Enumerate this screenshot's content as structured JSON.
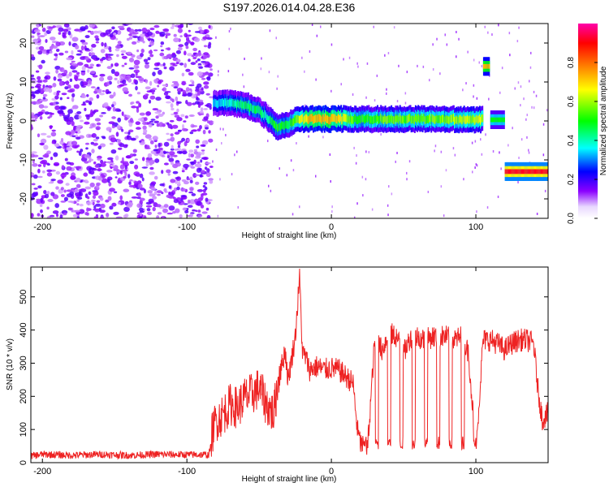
{
  "title": "S197.2026.014.04.28.E36",
  "chart_data": [
    {
      "type": "heatmap",
      "title": "S197.2026.014.04.28.E36",
      "xlabel": "Height of straight line (km)",
      "ylabel": "Frequency (Hz)",
      "xlim": [
        -208,
        150
      ],
      "ylim": [
        -25,
        25
      ],
      "xticks": [
        -200,
        -100,
        0,
        100
      ],
      "yticks": [
        -20,
        -10,
        0,
        10,
        20
      ],
      "colorbar": {
        "label": "Normalized spectral amplitude",
        "range": [
          0.0,
          1.0
        ],
        "ticks": [
          "0.0",
          "0.2",
          "0.4",
          "0.6",
          "0.8"
        ],
        "colors": [
          "#ffffff",
          "#8b00ff",
          "#0000ff",
          "#00ffff",
          "#00ff00",
          "#ffff00",
          "#ff8000",
          "#ff0000",
          "#ff00aa"
        ]
      },
      "noise_region_x": [
        -208,
        -83
      ],
      "ridge": [
        {
          "x": -82,
          "f": 4.5,
          "amp": 0.35
        },
        {
          "x": -70,
          "f": 4.5,
          "amp": 0.4
        },
        {
          "x": -60,
          "f": 4.0,
          "amp": 0.45
        },
        {
          "x": -52,
          "f": 3.0,
          "amp": 0.45
        },
        {
          "x": -45,
          "f": 1.0,
          "amp": 0.4
        },
        {
          "x": -38,
          "f": -1.5,
          "amp": 0.5
        },
        {
          "x": -30,
          "f": -1.0,
          "amp": 0.45
        },
        {
          "x": -25,
          "f": 0.5,
          "amp": 0.55
        },
        {
          "x": -15,
          "f": 0.5,
          "amp": 0.7
        },
        {
          "x": 0,
          "f": 0.5,
          "amp": 0.7
        },
        {
          "x": 20,
          "f": 0.5,
          "amp": 0.5
        },
        {
          "x": 40,
          "f": 0.5,
          "amp": 0.55
        },
        {
          "x": 60,
          "f": 0.5,
          "amp": 0.55
        },
        {
          "x": 80,
          "f": 0.5,
          "amp": 0.55
        },
        {
          "x": 100,
          "f": 0.3,
          "amp": 0.6
        },
        {
          "x": 104,
          "f": 0.3,
          "amp": 0.6
        }
      ],
      "features": [
        {
          "x_range": [
            105,
            109
          ],
          "f": 14.0,
          "amp": 0.7
        },
        {
          "x_range": [
            110,
            119
          ],
          "f": 0.3,
          "amp": 0.5
        },
        {
          "x_range": [
            120,
            150
          ],
          "f": -13.0,
          "amp": 0.9
        }
      ]
    },
    {
      "type": "line",
      "xlabel": "Height of straight line (km)",
      "ylabel": "SNR (10 * v/v)",
      "xlim": [
        -208,
        150
      ],
      "ylim": [
        0,
        590
      ],
      "xticks": [
        -200,
        -100,
        0,
        100
      ],
      "yticks": [
        0,
        100,
        200,
        300,
        400,
        500
      ],
      "color": "#ee2222",
      "series": [
        {
          "x": [
            -208,
            -200,
            -180,
            -160,
            -140,
            -120,
            -100,
            -85,
            -80,
            -75,
            -70,
            -65,
            -60,
            -55,
            -50,
            -45,
            -40,
            -35,
            -32,
            -30,
            -28,
            -25,
            -22,
            -20,
            -18,
            -15,
            -10,
            -5,
            0,
            5,
            10,
            15,
            18,
            20,
            22,
            25,
            30,
            35,
            40,
            45,
            50,
            55,
            60,
            65,
            70,
            75,
            80,
            85,
            90,
            95,
            100,
            105,
            110,
            115,
            120,
            125,
            130,
            135,
            140,
            143,
            146,
            150
          ],
          "values": [
            20,
            25,
            22,
            25,
            22,
            25,
            24,
            24,
            100,
            120,
            150,
            140,
            170,
            180,
            200,
            150,
            120,
            280,
            340,
            250,
            300,
            380,
            560,
            330,
            320,
            280,
            290,
            280,
            285,
            280,
            260,
            240,
            100,
            60,
            50,
            40,
            370,
            340,
            390,
            380,
            330,
            380,
            380,
            370,
            380,
            380,
            380,
            370,
            380,
            330,
            30,
            370,
            370,
            360,
            340,
            360,
            370,
            370,
            360,
            220,
            130,
            150
          ]
        }
      ]
    }
  ]
}
